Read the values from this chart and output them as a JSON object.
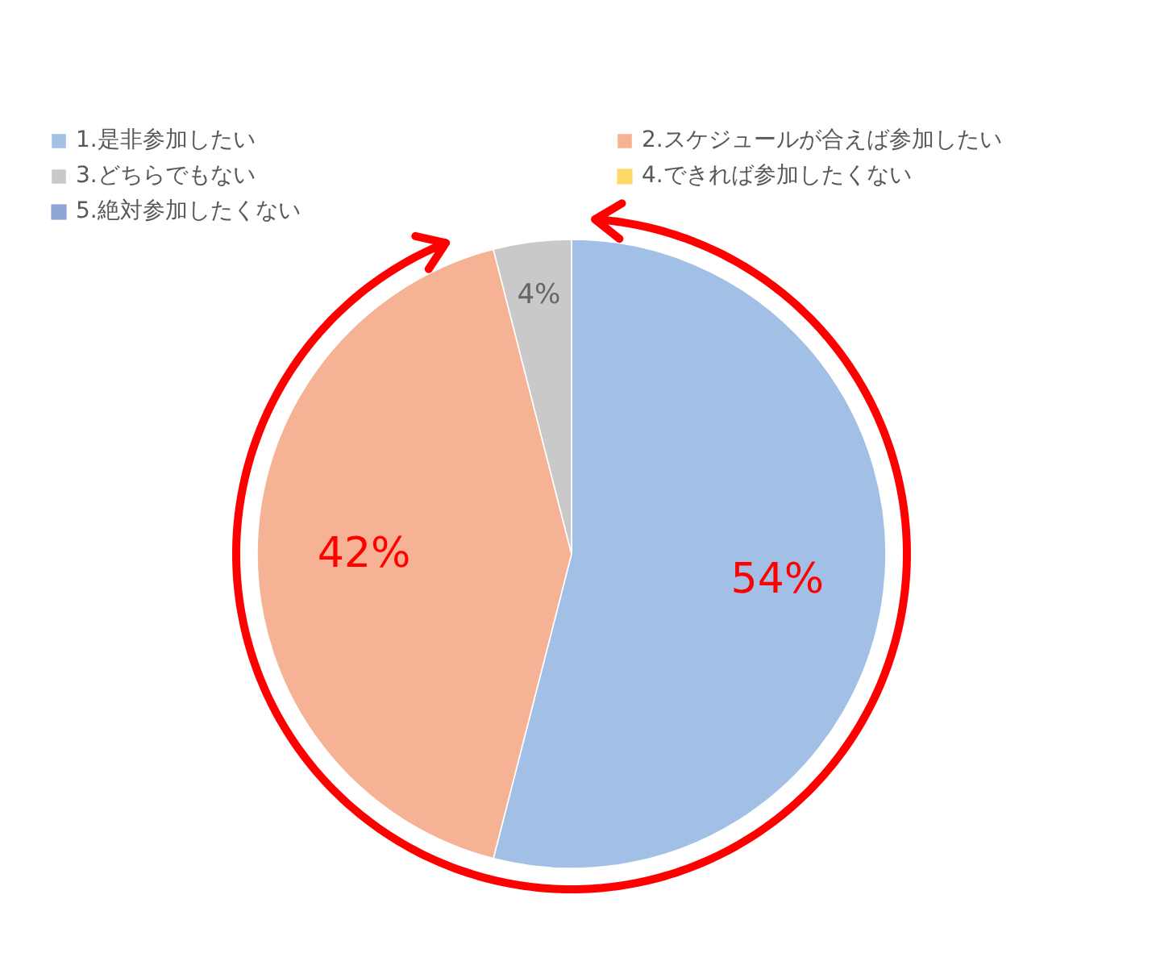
{
  "chart_data": {
    "type": "pie",
    "categories": [
      "1.是非参加したい",
      "2.スケジュールが合えば参加したい",
      "3.どちらでもない",
      "4.できれば参加したくない",
      "5.絶対参加したくない"
    ],
    "values": [
      54,
      42,
      4,
      0,
      0
    ],
    "colors": [
      "#a2bfe5",
      "#f5b295",
      "#c9c9c9",
      "#ffd966",
      "#8fa5d6"
    ],
    "value_labels": [
      "54%",
      "42%",
      "4%",
      null,
      null
    ],
    "legend": "top"
  }
}
